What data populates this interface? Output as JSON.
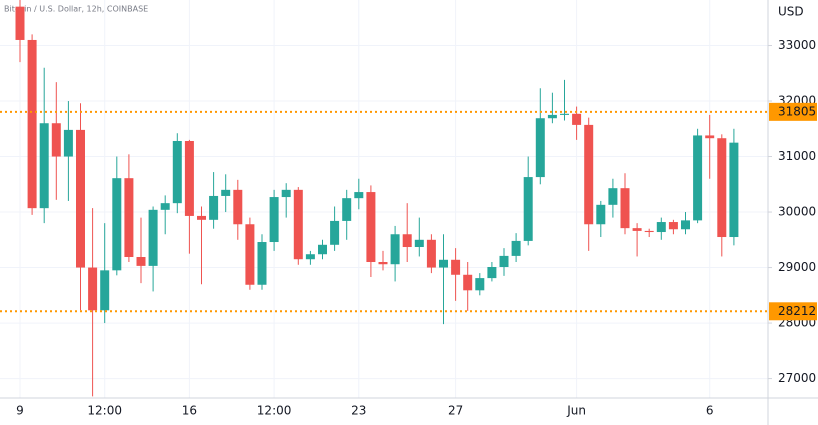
{
  "chart_data": {
    "type": "candlestick",
    "title": "Bitcoin / U.S. Dollar, 12h, COINBASE",
    "y_axis_label": "USD",
    "categories": [
      "9",
      null,
      null,
      null,
      null,
      null,
      null,
      "12:00",
      null,
      null,
      null,
      null,
      null,
      null,
      "16",
      null,
      null,
      null,
      null,
      null,
      null,
      "12:00",
      null,
      null,
      null,
      null,
      null,
      null,
      "23",
      null,
      null,
      null,
      null,
      null,
      null,
      null,
      "27",
      null,
      null,
      null,
      null,
      null,
      null,
      null,
      null,
      null,
      "Jun",
      null,
      null,
      null,
      null,
      null,
      null,
      null,
      null,
      null,
      null,
      "6",
      null,
      null
    ],
    "open": [
      33700,
      33100,
      30070,
      31600,
      31000,
      31480,
      29000,
      28230,
      28950,
      30610,
      29190,
      29030,
      30040,
      30160,
      31280,
      29930,
      29860,
      30290,
      30400,
      29780,
      28690,
      29460,
      30270,
      30400,
      29150,
      29240,
      29410,
      29840,
      30250,
      30360,
      29100,
      29060,
      29600,
      29370,
      29500,
      29000,
      29140,
      28870,
      28590,
      28810,
      29010,
      29210,
      29480,
      30630,
      31690,
      31750,
      31770,
      31570,
      29780,
      30130,
      30430,
      29710,
      29660,
      29640,
      29820,
      29690,
      29850,
      31380,
      31330,
      29550
    ],
    "high": [
      33820,
      33200,
      32600,
      32340,
      32000,
      31960,
      30070,
      29800,
      31000,
      31040,
      29900,
      30100,
      30300,
      31420,
      31300,
      30100,
      30720,
      30680,
      30580,
      29900,
      29600,
      30400,
      30520,
      30450,
      29300,
      29500,
      30100,
      30400,
      30600,
      30480,
      29300,
      29750,
      30160,
      29900,
      29600,
      29600,
      29350,
      29100,
      28900,
      29100,
      29350,
      29620,
      31000,
      32230,
      32150,
      32380,
      31900,
      31700,
      30200,
      30600,
      30700,
      29800,
      29700,
      29900,
      29860,
      30000,
      31500,
      31750,
      31400,
      31500
    ],
    "low": [
      32700,
      29950,
      29800,
      30220,
      30200,
      28230,
      26680,
      28000,
      28860,
      29100,
      28720,
      28570,
      29600,
      29980,
      29250,
      28700,
      29700,
      30000,
      29500,
      28600,
      28600,
      29300,
      29900,
      29050,
      29050,
      29150,
      29300,
      29500,
      30050,
      28830,
      28950,
      28750,
      29100,
      29200,
      28900,
      27980,
      28400,
      28220,
      28500,
      28750,
      28850,
      29100,
      29400,
      30500,
      31600,
      31650,
      31300,
      29300,
      29550,
      29900,
      29600,
      29200,
      29550,
      29500,
      29600,
      29600,
      29800,
      30600,
      29200,
      29400
    ],
    "close": [
      33100,
      30070,
      31600,
      31000,
      31480,
      29000,
      28230,
      28950,
      30610,
      29190,
      29030,
      30040,
      30160,
      31280,
      29930,
      29860,
      30290,
      30400,
      29780,
      28690,
      29460,
      30270,
      30400,
      29150,
      29240,
      29410,
      29840,
      30250,
      30360,
      29100,
      29060,
      29600,
      29370,
      29500,
      29000,
      29140,
      28870,
      28590,
      28810,
      29010,
      29210,
      29480,
      30630,
      31690,
      31750,
      31770,
      31570,
      29780,
      30130,
      30430,
      29710,
      29660,
      29640,
      29820,
      29690,
      29850,
      31380,
      31330,
      29550,
      31250
    ],
    "up_color": "#26a69a",
    "down_color": "#ef5350",
    "hlines": [
      31805,
      28212
    ],
    "hline_color": "#ff9800",
    "ylim": [
      26650,
      33820
    ],
    "yticks": [
      27000,
      28000,
      29000,
      30000,
      31000,
      32000,
      33000
    ],
    "grid": true
  }
}
